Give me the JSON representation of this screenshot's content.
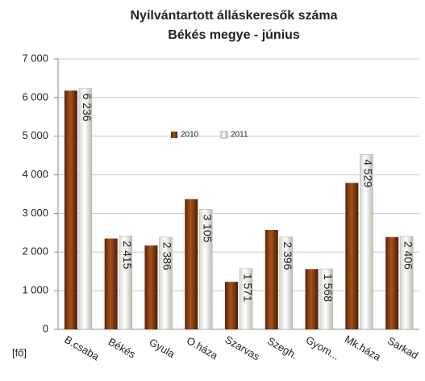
{
  "chart_data": {
    "type": "bar",
    "title": "Nyilvántartott álláskeresők száma",
    "subtitle": "Békés megye - június",
    "y_label": "[fő]",
    "categories": [
      "B.csaba",
      "Békés",
      "Gyula",
      "O.háza",
      "Szarvas",
      "Szegh.",
      "Gyom...",
      "Mk.háza",
      "Sarkad"
    ],
    "series": [
      {
        "name": "2010",
        "color": "#7b3a10",
        "values": [
          6180,
          2350,
          2170,
          3370,
          1230,
          2570,
          1560,
          3790,
          2390
        ]
      },
      {
        "name": "2011",
        "color": "#e6e6e0",
        "values": [
          6236,
          2415,
          2386,
          3105,
          1571,
          2396,
          1568,
          4529,
          2406
        ],
        "value_labels": [
          "6 236",
          "2 415",
          "2 386",
          "3 105",
          "1 571",
          "2 396",
          "1 568",
          "4 529",
          "2 406"
        ]
      }
    ],
    "ylim": [
      0,
      7000
    ],
    "yticks": [
      {
        "value": 0,
        "label": "0"
      },
      {
        "value": 1000,
        "label": "1 000"
      },
      {
        "value": 2000,
        "label": "2 000"
      },
      {
        "value": 3000,
        "label": "3 000"
      },
      {
        "value": 4000,
        "label": "4 000"
      },
      {
        "value": 5000,
        "label": "5 000"
      },
      {
        "value": 6000,
        "label": "6 000"
      },
      {
        "value": 7000,
        "label": "7 000"
      }
    ],
    "grid": true
  }
}
